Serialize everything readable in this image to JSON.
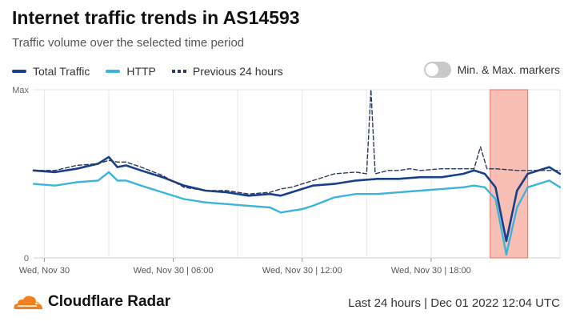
{
  "title": "Internet traffic trends in AS14593",
  "subtitle": "Traffic volume over the selected time period",
  "legend": {
    "total": "Total Traffic",
    "http": "HTTP",
    "previous": "Previous 24 hours"
  },
  "toggle": {
    "label": "Min. & Max. markers",
    "on": false
  },
  "footer": {
    "brand": "Cloudflare Radar",
    "info": "Last 24 hours | Dec 01 2022 12:04 UTC"
  },
  "colors": {
    "total": "#163f8c",
    "http": "#3bb4dc",
    "previous": "#2b3a5c",
    "anomaly": "#f7a99c",
    "brand_orange": "#f38020"
  },
  "chart_data": {
    "type": "line",
    "x_start": "Wed, Nov 30 00:00",
    "x_end": "Dec 01 12:00",
    "y_tick_labels": [
      "Max",
      "0"
    ],
    "x_tick_labels": [
      "Wed, Nov 30",
      "Wed, Nov 30 | 06:00",
      "Wed, Nov 30 | 12:00",
      "Wed, Nov 30 | 18:00"
    ],
    "x_tick_hours": [
      0,
      6,
      12,
      18
    ],
    "ylim": [
      0,
      100
    ],
    "x_hours_range": [
      -0.5,
      24
    ],
    "anomaly_hours": [
      20.75,
      22.5
    ],
    "series": [
      {
        "name": "Total Traffic",
        "style": "solid",
        "x": [
          -0.5,
          0.5,
          1.5,
          2.5,
          3.0,
          3.4,
          3.8,
          4.5,
          5.5,
          6.5,
          7.5,
          8.5,
          9.5,
          10.5,
          11.0,
          11.5,
          12.0,
          12.5,
          13.5,
          14.5,
          15.5,
          16.5,
          17.5,
          18.5,
          19.5,
          20.0,
          20.5,
          21.0,
          21.5,
          22.0,
          22.5,
          23.5,
          24.0
        ],
        "values": [
          52,
          51,
          53,
          56,
          60,
          54,
          55,
          52,
          48,
          43,
          40,
          39,
          37,
          38,
          37,
          39,
          41,
          43,
          44,
          46,
          47,
          47,
          48,
          48,
          50,
          52,
          50,
          42,
          10,
          40,
          50,
          54,
          50
        ]
      },
      {
        "name": "HTTP",
        "style": "solid",
        "x": [
          -0.5,
          0.5,
          1.5,
          2.5,
          3.0,
          3.4,
          3.8,
          4.5,
          5.5,
          6.5,
          7.5,
          8.5,
          9.5,
          10.5,
          11.0,
          11.5,
          12.0,
          12.5,
          13.5,
          14.5,
          15.5,
          16.5,
          17.5,
          18.5,
          19.5,
          20.0,
          20.5,
          21.0,
          21.5,
          22.0,
          22.5,
          23.5,
          24.0
        ],
        "values": [
          44,
          43,
          45,
          46,
          51,
          46,
          46,
          43,
          39,
          35,
          33,
          32,
          31,
          30,
          27,
          28,
          29,
          31,
          36,
          38,
          38,
          39,
          40,
          41,
          42,
          43,
          42,
          35,
          2,
          30,
          42,
          46,
          42
        ]
      },
      {
        "name": "Previous 24 hours",
        "style": "dashed",
        "x": [
          -0.5,
          0.5,
          1.5,
          2.5,
          3.0,
          3.4,
          3.8,
          4.5,
          5.5,
          6.5,
          7.5,
          8.5,
          9.5,
          10.5,
          11.0,
          11.5,
          12.0,
          12.5,
          13.5,
          14.5,
          15.0,
          15.2,
          15.4,
          16.0,
          16.5,
          17.0,
          17.5,
          18.5,
          19.5,
          20.0,
          20.3,
          20.6,
          21.0,
          22.0,
          23.0,
          24.0
        ],
        "values": [
          52,
          52,
          55,
          56,
          58,
          57,
          57,
          54,
          49,
          42,
          40,
          40,
          38,
          39,
          41,
          42,
          44,
          46,
          50,
          51,
          50,
          100,
          50,
          52,
          52,
          53,
          52,
          53,
          53,
          53,
          66,
          53,
          53,
          52,
          52,
          52
        ]
      }
    ]
  }
}
